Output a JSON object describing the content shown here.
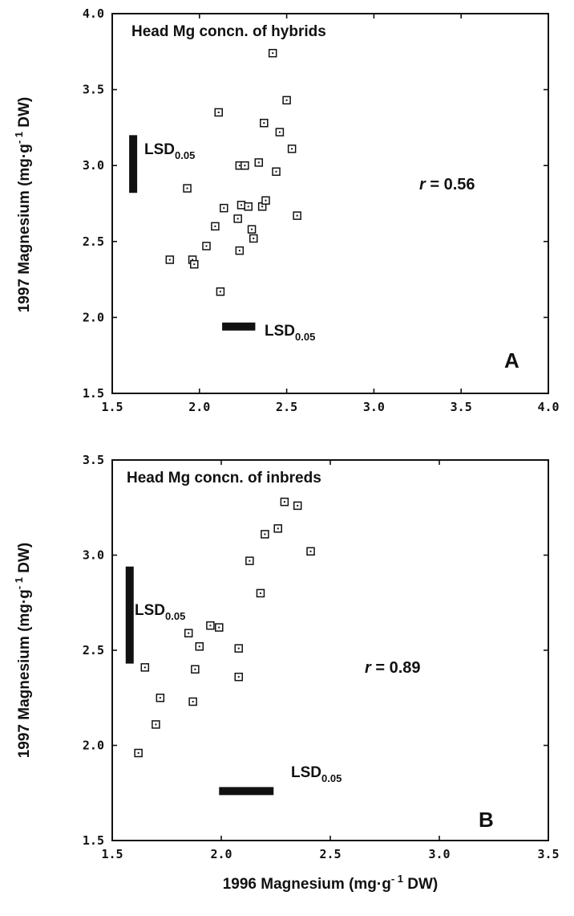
{
  "chart_data": [
    {
      "type": "scatter",
      "title": "Head Mg concn. of hybrids",
      "panel_label": "A",
      "ylabel_parts": {
        "pre": "1997  Magnesium  (mg",
        "mid": "g",
        "sup": "- 1",
        "post": "  DW)"
      },
      "xlim": [
        1.5,
        4.0
      ],
      "ylim": [
        1.5,
        4.0
      ],
      "xticks": [
        "1.5",
        "2.0",
        "2.5",
        "3.0",
        "3.5",
        "4.0"
      ],
      "yticks": [
        "1.5",
        "2.0",
        "2.5",
        "3.0",
        "3.5",
        "4.0"
      ],
      "r_label": "r",
      "r_eq": "=  0.56",
      "lsd_main": "LSD",
      "lsd_sub": "0.05",
      "lsd_y": {
        "y0": 2.82,
        "y1": 3.2,
        "x": 1.62
      },
      "lsd_x": {
        "x0": 2.13,
        "x1": 2.32,
        "y": 1.94
      },
      "points": [
        {
          "x": 1.83,
          "y": 2.38
        },
        {
          "x": 1.93,
          "y": 2.85
        },
        {
          "x": 1.96,
          "y": 2.38
        },
        {
          "x": 1.97,
          "y": 2.35
        },
        {
          "x": 2.04,
          "y": 2.47
        },
        {
          "x": 2.09,
          "y": 2.6
        },
        {
          "x": 2.11,
          "y": 3.35
        },
        {
          "x": 2.12,
          "y": 2.17
        },
        {
          "x": 2.14,
          "y": 2.72
        },
        {
          "x": 2.22,
          "y": 2.65
        },
        {
          "x": 2.23,
          "y": 2.44
        },
        {
          "x": 2.23,
          "y": 3.0
        },
        {
          "x": 2.24,
          "y": 2.74
        },
        {
          "x": 2.26,
          "y": 3.0
        },
        {
          "x": 2.28,
          "y": 2.73
        },
        {
          "x": 2.3,
          "y": 2.58
        },
        {
          "x": 2.31,
          "y": 2.52
        },
        {
          "x": 2.34,
          "y": 3.02
        },
        {
          "x": 2.36,
          "y": 2.73
        },
        {
          "x": 2.37,
          "y": 3.28
        },
        {
          "x": 2.38,
          "y": 2.77
        },
        {
          "x": 2.42,
          "y": 3.74
        },
        {
          "x": 2.44,
          "y": 2.96
        },
        {
          "x": 2.46,
          "y": 3.22
        },
        {
          "x": 2.5,
          "y": 3.43
        },
        {
          "x": 2.53,
          "y": 3.11
        },
        {
          "x": 2.56,
          "y": 2.67
        }
      ]
    },
    {
      "type": "scatter",
      "title": "Head Mg  concn.  of  inbreds",
      "panel_label": "B",
      "ylabel_parts": {
        "pre": "1997 Magnesium  (mg",
        "mid": "g",
        "sup": "- 1",
        "post": "  DW)"
      },
      "xlabel_parts": {
        "pre": "1996  Magnesium  (mg",
        "mid": "g",
        "sup": "- 1",
        "post": "  DW)"
      },
      "xlim": [
        1.5,
        3.5
      ],
      "ylim": [
        1.5,
        3.5
      ],
      "xticks": [
        "1.5",
        "2.0",
        "2.5",
        "3.0",
        "3.5"
      ],
      "yticks": [
        "1.5",
        "2.0",
        "2.5",
        "3.0",
        "3.5"
      ],
      "r_label": "r",
      "r_eq": "=  0.89",
      "lsd_main": "LSD",
      "lsd_sub": "0.05",
      "lsd_y": {
        "y0": 2.43,
        "y1": 2.94,
        "x": 1.58
      },
      "lsd_x": {
        "x0": 1.99,
        "x1": 2.24,
        "y": 1.76
      },
      "points": [
        {
          "x": 1.62,
          "y": 1.96
        },
        {
          "x": 1.65,
          "y": 2.41
        },
        {
          "x": 1.7,
          "y": 2.11
        },
        {
          "x": 1.72,
          "y": 2.25
        },
        {
          "x": 1.85,
          "y": 2.59
        },
        {
          "x": 1.87,
          "y": 2.23
        },
        {
          "x": 1.88,
          "y": 2.4
        },
        {
          "x": 1.9,
          "y": 2.52
        },
        {
          "x": 1.95,
          "y": 2.63
        },
        {
          "x": 1.99,
          "y": 2.62
        },
        {
          "x": 2.08,
          "y": 2.51
        },
        {
          "x": 2.08,
          "y": 2.36
        },
        {
          "x": 2.13,
          "y": 2.97
        },
        {
          "x": 2.18,
          "y": 2.8
        },
        {
          "x": 2.2,
          "y": 3.11
        },
        {
          "x": 2.26,
          "y": 3.14
        },
        {
          "x": 2.29,
          "y": 3.28
        },
        {
          "x": 2.35,
          "y": 3.26
        },
        {
          "x": 2.41,
          "y": 3.02
        }
      ]
    }
  ]
}
